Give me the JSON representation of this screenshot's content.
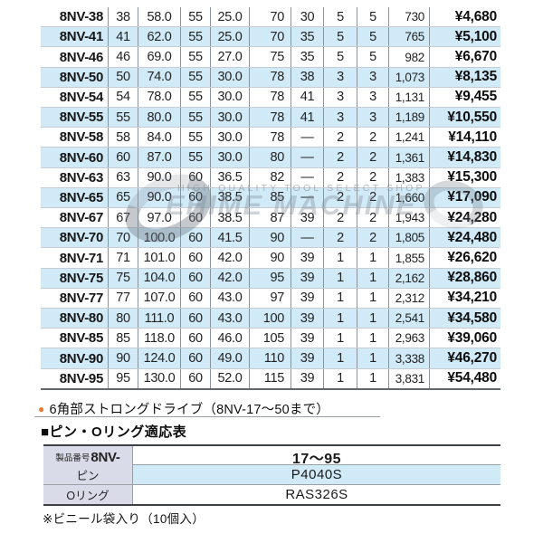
{
  "main_table": {
    "rows": [
      [
        "8NV-38",
        "38",
        "58.0",
        "55",
        "25.0",
        "70",
        "30",
        "5",
        "5",
        "730",
        "¥4,680"
      ],
      [
        "8NV-41",
        "41",
        "62.0",
        "55",
        "25.0",
        "70",
        "35",
        "5",
        "5",
        "765",
        "¥5,100"
      ],
      [
        "8NV-46",
        "46",
        "69.0",
        "55",
        "27.0",
        "75",
        "35",
        "5",
        "5",
        "982",
        "¥6,670"
      ],
      [
        "8NV-50",
        "50",
        "74.0",
        "55",
        "30.0",
        "78",
        "38",
        "3",
        "3",
        "1,073",
        "¥8,135"
      ],
      [
        "8NV-54",
        "54",
        "78.0",
        "55",
        "30.0",
        "78",
        "41",
        "3",
        "3",
        "1,131",
        "¥9,455"
      ],
      [
        "8NV-55",
        "55",
        "80.0",
        "55",
        "30.0",
        "78",
        "41",
        "3",
        "3",
        "1,189",
        "¥10,550"
      ],
      [
        "8NV-58",
        "58",
        "84.0",
        "55",
        "30.0",
        "78",
        "—",
        "2",
        "2",
        "1,241",
        "¥14,110"
      ],
      [
        "8NV-60",
        "60",
        "87.0",
        "55",
        "30.0",
        "80",
        "—",
        "2",
        "2",
        "1,361",
        "¥14,830"
      ],
      [
        "8NV-63",
        "63",
        "90.0",
        "60",
        "36.5",
        "82",
        "—",
        "2",
        "2",
        "1,383",
        "¥15,300"
      ],
      [
        "8NV-65",
        "65",
        "90.0",
        "60",
        "38.5",
        "85",
        "—",
        "2",
        "2",
        "1,660",
        "¥17,090"
      ],
      [
        "8NV-67",
        "67",
        "97.0",
        "60",
        "38.5",
        "87",
        "39",
        "2",
        "2",
        "1,943",
        "¥24,280"
      ],
      [
        "8NV-70",
        "70",
        "100.0",
        "60",
        "41.5",
        "90",
        "—",
        "2",
        "2",
        "1,805",
        "¥24,480"
      ],
      [
        "8NV-71",
        "71",
        "101.0",
        "60",
        "42.0",
        "90",
        "39",
        "1",
        "1",
        "1,855",
        "¥26,620"
      ],
      [
        "8NV-75",
        "75",
        "104.0",
        "60",
        "42.0",
        "95",
        "39",
        "1",
        "1",
        "2,162",
        "¥28,860"
      ],
      [
        "8NV-77",
        "77",
        "107.0",
        "60",
        "43.0",
        "97",
        "39",
        "1",
        "1",
        "2,312",
        "¥34,210"
      ],
      [
        "8NV-80",
        "80",
        "111.0",
        "60",
        "43.0",
        "100",
        "39",
        "1",
        "1",
        "2,541",
        "¥34,580"
      ],
      [
        "8NV-85",
        "85",
        "118.0",
        "60",
        "46.0",
        "105",
        "39",
        "1",
        "1",
        "2,963",
        "¥39,060"
      ],
      [
        "8NV-90",
        "90",
        "124.0",
        "60",
        "49.0",
        "110",
        "39",
        "1",
        "1",
        "3,338",
        "¥46,270"
      ],
      [
        "8NV-95",
        "95",
        "130.0",
        "60",
        "52.0",
        "115",
        "39",
        "1",
        "1",
        "3,831",
        "¥54,480"
      ]
    ]
  },
  "notes": {
    "hex_note_bullet": "●",
    "hex_note_text": "6角部ストロングドライブ（8NV-17～50まで）",
    "section_title": "■ピン・Oリング適応表",
    "footnote": "※ビニール袋入り（10個入）"
  },
  "pin_table": {
    "rows": [
      {
        "label_small": "製品番号",
        "label_bold": "8NV-",
        "value": "17～95"
      },
      {
        "label": "ピン",
        "value": "P4040S"
      },
      {
        "label": "Oリング",
        "value": "RAS326S"
      }
    ]
  },
  "watermark": {
    "line1": "HIGH QUALITY TOOL SELECT SHOP",
    "line2": "EHIME MACHINE"
  },
  "colors": {
    "stripe_blue": "#d0eaf8",
    "label_bg": "#d9dce8",
    "bullet_orange": "#ed7d31",
    "grid_line": "#8d939a"
  }
}
